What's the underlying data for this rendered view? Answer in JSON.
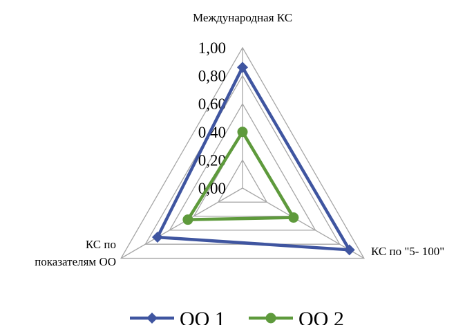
{
  "chart_data": {
    "type": "radar",
    "categories": [
      "Международная КС",
      "КС по \"5- 100\"",
      "КС по\nпоказателям ОО"
    ],
    "category_label_lines": [
      [
        "Международная КС"
      ],
      [
        "КС по \"5- 100\""
      ],
      [
        "КС по",
        "показателям ОО"
      ]
    ],
    "r_ticks": [
      "0,00",
      "0,20",
      "0,40",
      "0,60",
      "0,80",
      "1,00"
    ],
    "r_range": [
      0,
      1
    ],
    "series": [
      {
        "name": "ОО 1",
        "values": [
          0.86,
          0.88,
          0.7
        ],
        "color": "#3F55A0",
        "marker": "diamond"
      },
      {
        "name": "ОО 2",
        "values": [
          0.4,
          0.42,
          0.45
        ],
        "color": "#5E9A3C",
        "marker": "circle"
      }
    ],
    "grid": true,
    "grid_color": "#A6A6A6",
    "legend_position": "bottom"
  }
}
